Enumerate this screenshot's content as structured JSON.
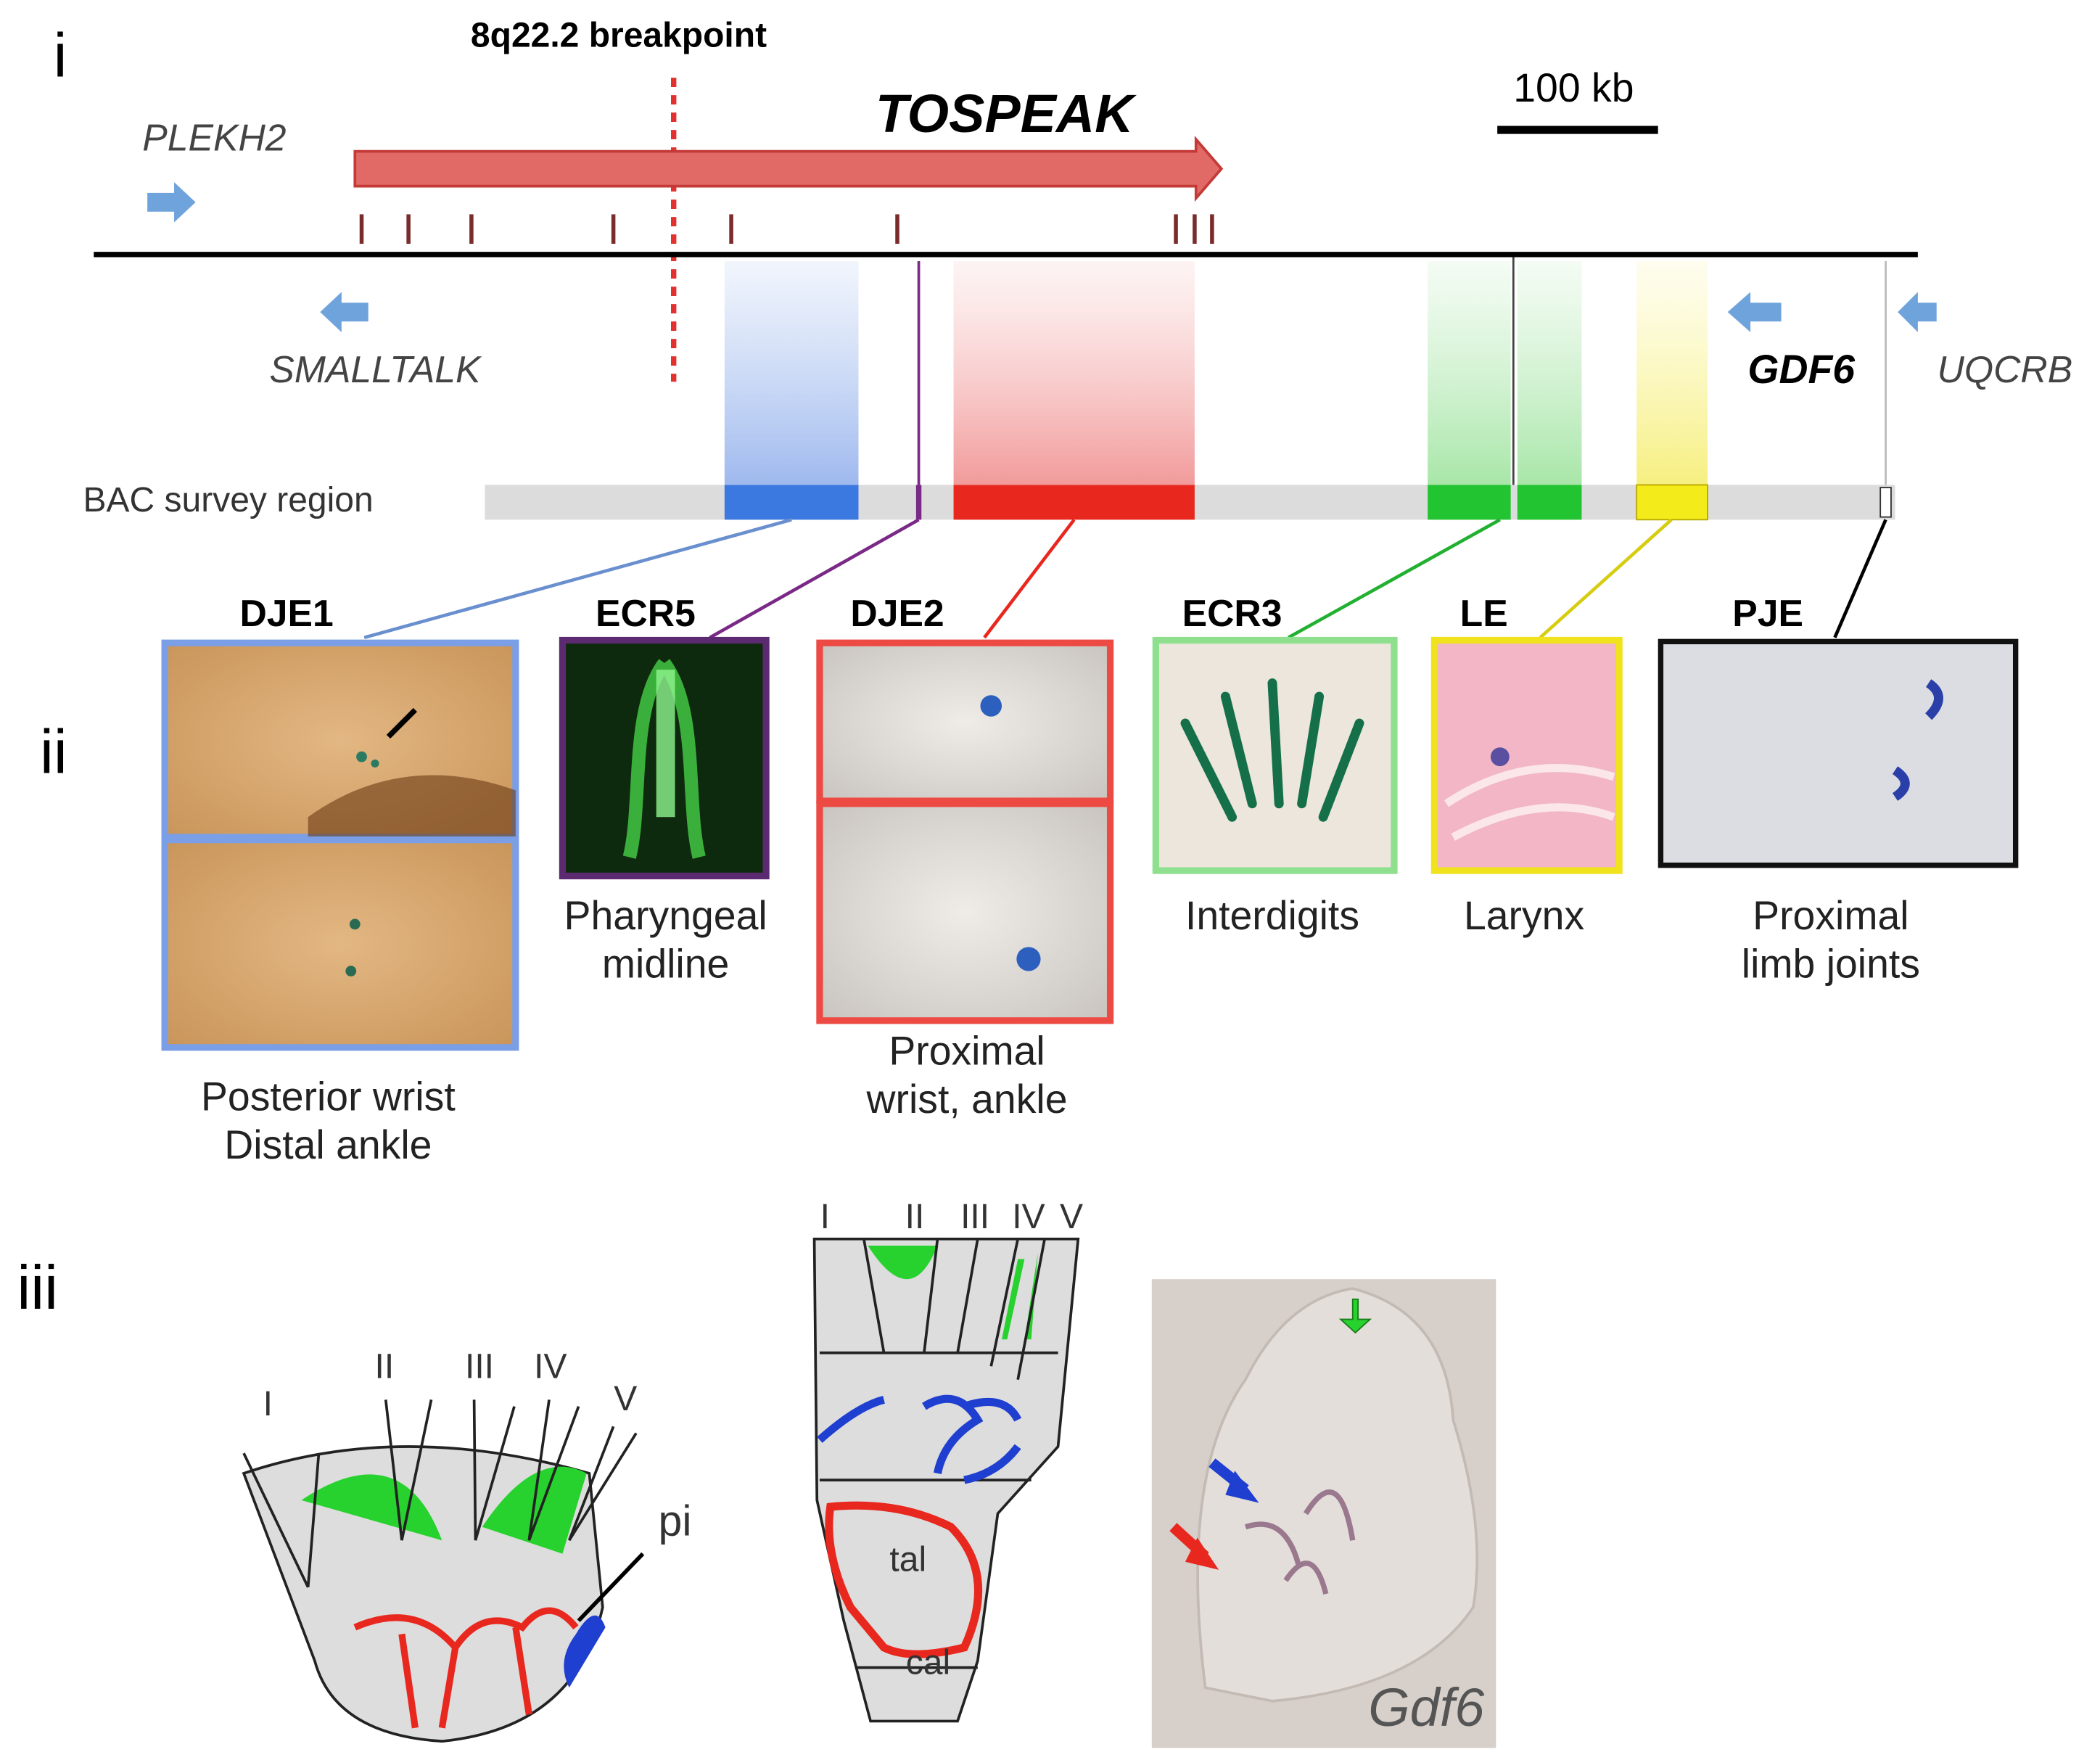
{
  "panel_labels": [
    "i",
    "ii",
    "iii"
  ],
  "locus": {
    "breakpoint": "8q22.2 breakpoint",
    "tospeak": "TOSPEAK",
    "scale_bar": "100 kb",
    "genes": [
      "PLEKH2",
      "SMALLTALK",
      "GDF6",
      "UQCRB"
    ],
    "bac_label": "BAC survey region"
  },
  "elements": [
    {
      "name": "DJE1",
      "description": [
        "Posterior wrist",
        "Distal ankle"
      ]
    },
    {
      "name": "ECR5",
      "description": [
        "Pharyngeal",
        "midline"
      ]
    },
    {
      "name": "DJE2",
      "description": [
        "Proximal",
        "wrist, ankle"
      ]
    },
    {
      "name": "ECR3",
      "description": [
        "Interdigits"
      ]
    },
    {
      "name": "LE",
      "description": [
        "Larynx"
      ]
    },
    {
      "name": "PJE",
      "description": [
        "Proximal",
        "limb joints"
      ]
    }
  ],
  "hand_diagram": {
    "digits": [
      "I",
      "II",
      "III",
      "IV",
      "V"
    ],
    "label": "pi"
  },
  "foot_diagram": {
    "digits": [
      "I",
      "II",
      "III",
      "IV",
      "V"
    ],
    "bones": [
      "tal",
      "cal"
    ]
  },
  "photo_label": "Gdf6"
}
